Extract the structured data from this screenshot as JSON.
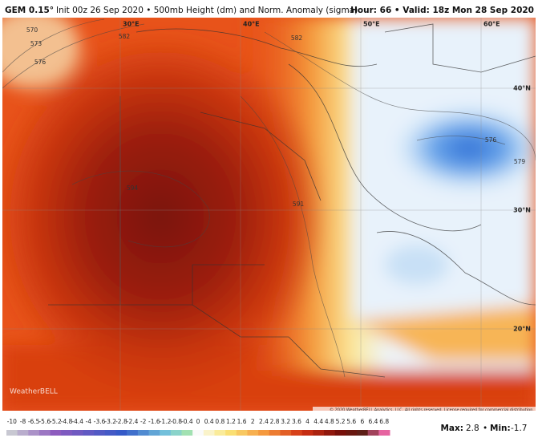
{
  "header": {
    "model": "GEM 0.15°",
    "title": "Init 00z 26 Sep 2020 • 500mb Height (dm) and Norm. Anomaly (sigma)",
    "hour": "Hour: 66 • Valid: 18z Mon 28 Sep 2020"
  },
  "map": {
    "lon_labels": [
      "30°E",
      "40°E",
      "50°E",
      "60°E"
    ],
    "lat_labels": [
      "40°N",
      "30°N",
      "20°N"
    ],
    "contour_labels": [
      "570",
      "573",
      "576",
      "582",
      "582",
      "594",
      "591",
      "576",
      "579"
    ],
    "watermark": "WeatherBELL",
    "copyright": "© 2020 WeatherBELL Analytics, LLC. All rights reserved. License required for commercial distribution."
  },
  "colorbar": {
    "values": [
      -10,
      -8,
      -6.5,
      -5.6,
      -5.2,
      -4.8,
      -4.4,
      -4,
      -3.6,
      -3.2,
      -2.8,
      -2.4,
      -2,
      -1.6,
      -1.2,
      -0.8,
      -0.4,
      0,
      0.4,
      0.8,
      1.2,
      1.6,
      2,
      2.4,
      2.8,
      3.2,
      3.6,
      4,
      4.4,
      4.8,
      5.2,
      5.6,
      6,
      6.4,
      6.8
    ]
  },
  "stats": {
    "max_label": "Max:",
    "max": 2.8,
    "sep": "•",
    "min_label": "Min:",
    "min": -1.7
  }
}
